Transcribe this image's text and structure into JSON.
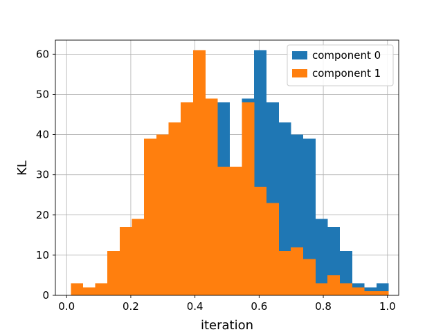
{
  "chart_data": {
    "type": "histogram",
    "xlabel": "iteration",
    "ylabel": "KL",
    "xlim": [
      -0.035,
      1.035
    ],
    "ylim": [
      0,
      63.5
    ],
    "xticks": [
      0.0,
      0.2,
      0.4,
      0.6,
      0.8,
      1.0
    ],
    "xtick_labels": [
      "0.0",
      "0.2",
      "0.4",
      "0.6",
      "0.8",
      "1.0"
    ],
    "yticks": [
      0,
      10,
      20,
      30,
      40,
      50,
      60
    ],
    "ytick_labels": [
      "0",
      "10",
      "20",
      "30",
      "40",
      "50",
      "60"
    ],
    "grid": true,
    "legend_position": "top-right",
    "series": [
      {
        "name": "component 0",
        "color": "#1f77b4",
        "bin_start": 0.013,
        "bin_width": 0.0381,
        "counts": [
          3,
          2,
          3,
          11,
          17,
          19,
          39,
          40,
          43,
          48,
          61,
          49,
          48,
          32,
          49,
          61,
          48,
          43,
          40,
          39,
          19,
          17,
          11,
          3,
          2,
          3
        ]
      },
      {
        "name": "component 1",
        "color": "#ff7f0e",
        "bin_start": 0.013,
        "bin_width": 0.0381,
        "counts": [
          3,
          2,
          3,
          11,
          17,
          19,
          39,
          40,
          43,
          48,
          61,
          49,
          32,
          32,
          48,
          27,
          23,
          11,
          12,
          9,
          3,
          5,
          3,
          2,
          1,
          1
        ]
      }
    ]
  }
}
